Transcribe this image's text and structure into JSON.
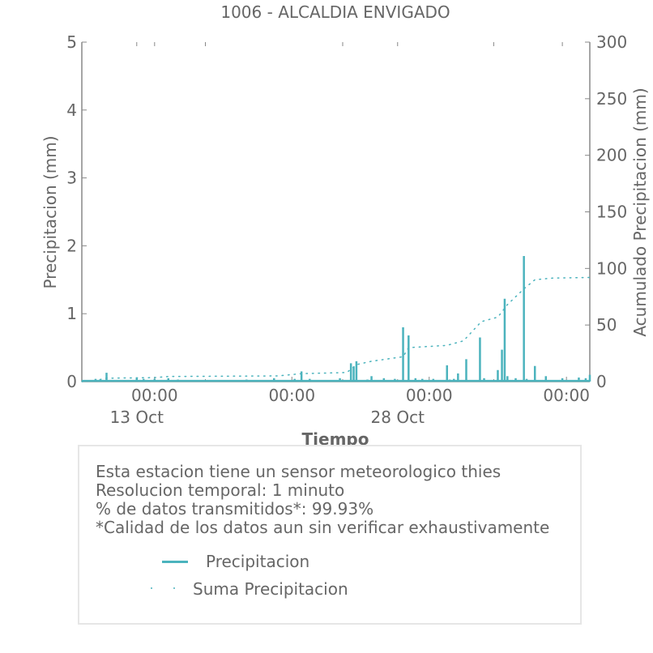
{
  "chart_data": {
    "type": "line",
    "title": "1006 - ALCALDIA ENVIGADO",
    "xlabel": "Tiempo",
    "ylabel": "Precipitacion (mm)",
    "y2label": "Acumulado Precipitacion (mm)",
    "ylim": [
      0,
      5
    ],
    "y2lim": [
      0,
      300
    ],
    "yticks": [
      "0",
      "1",
      "2",
      "3",
      "4",
      "5"
    ],
    "y2ticks": [
      "0",
      "50",
      "100",
      "150",
      "200",
      "250",
      "300"
    ],
    "x_day_range": [
      5.2,
      42.2
    ],
    "x_ticks": [
      {
        "day": 10.5,
        "label": "00:00"
      },
      {
        "day": 20.5,
        "label": "00:00"
      },
      {
        "day": 30.5,
        "label": "00:00"
      },
      {
        "day": 40.5,
        "label": "00:00"
      }
    ],
    "x_minor_ticks": [
      9.2,
      10.5,
      14.2,
      24.2,
      28.2,
      35.2,
      40.2
    ],
    "x_date_labels": [
      {
        "day": 9.2,
        "label": "13 Oct"
      },
      {
        "day": 28.2,
        "label": "28 Oct"
      }
    ],
    "series": [
      {
        "name": "Precipitacion",
        "style": "line",
        "color": "#4bb3bd",
        "x": [
          6.2,
          7.0,
          9.2,
          9.7,
          10.5,
          11.5,
          12.2,
          15.2,
          17.2,
          19.2,
          20.7,
          21.2,
          21.8,
          22.5,
          24.0,
          24.8,
          25.0,
          25.2,
          26.0,
          26.3,
          27.2,
          28.0,
          28.6,
          29.0,
          29.5,
          30.0,
          30.8,
          31.8,
          32.0,
          32.3,
          32.6,
          33.2,
          34.2,
          34.5,
          35.5,
          35.8,
          36.0,
          36.2,
          36.8,
          37.4,
          37.6,
          38.2,
          39.0,
          40.2,
          41.4,
          41.9,
          42.2
        ],
        "values": [
          0.04,
          0.13,
          0.05,
          0.04,
          0.04,
          0.05,
          0.03,
          0.02,
          0.03,
          0.05,
          0.04,
          0.15,
          0.04,
          0.02,
          0.05,
          0.27,
          0.22,
          0.3,
          0.03,
          0.08,
          0.05,
          0.04,
          0.8,
          0.68,
          0.05,
          0.04,
          0.04,
          0.24,
          0.03,
          0.04,
          0.12,
          0.33,
          0.65,
          0.05,
          0.17,
          0.47,
          1.22,
          0.08,
          0.05,
          1.85,
          0.04,
          0.23,
          0.08,
          0.05,
          0.06,
          0.05,
          0.1
        ]
      },
      {
        "name": "Suma Precipitacion",
        "style": "dotted",
        "color": "#4bb3bd",
        "x": [
          5.2,
          6.2,
          7.0,
          10.5,
          11.5,
          19.5,
          21.2,
          24.5,
          25.2,
          26.3,
          28.6,
          29.0,
          31.8,
          33.0,
          34.3,
          35.5,
          36.2,
          37.4,
          38.2,
          39.5,
          42.2
        ],
        "values": [
          0,
          1,
          3,
          3.5,
          4.5,
          5,
          7,
          8,
          15,
          18,
          22,
          30,
          32,
          36,
          53,
          57,
          68,
          82,
          90,
          91.5,
          92
        ]
      }
    ],
    "legend_placement": "bottom-center"
  },
  "info": {
    "lines": [
      "Esta estacion tiene un sensor meteorologico thies",
      "Resolucion temporal: 1 minuto",
      "% de datos transmitidos*: 99.93%",
      "*Calidad de los datos aun sin verificar exhaustivamente"
    ],
    "legend": {
      "precip_label": "Precipitacion",
      "sum_label": "Suma Precipitacion"
    }
  }
}
